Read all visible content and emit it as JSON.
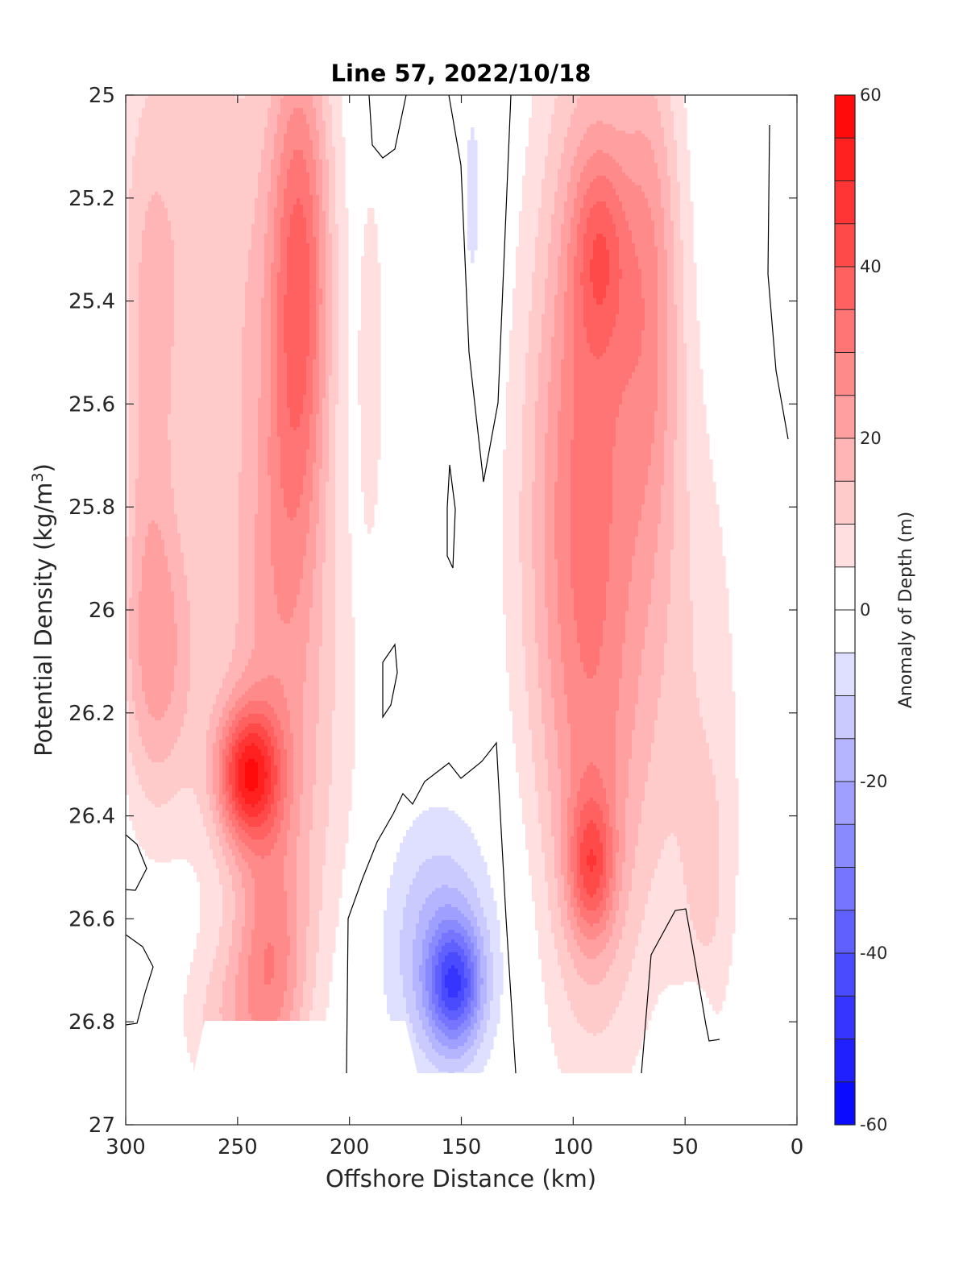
{
  "chart_data": {
    "type": "contour",
    "title": "Line 57, 2022/10/18",
    "xlabel": "Offshore Distance (km)",
    "ylabel": "Potential Density (kg/m3)",
    "ylabel_main": "Potential Density (kg/m",
    "ylabel_sup": "3",
    "ylabel_close": ")",
    "xlim": [
      300,
      0
    ],
    "x_reversed": true,
    "ylim": [
      25,
      27
    ],
    "y_reversed": true,
    "xticks": [
      300,
      250,
      200,
      150,
      100,
      50,
      0
    ],
    "xtick_labels": [
      "300",
      "250",
      "200",
      "150",
      "100",
      "50",
      "0"
    ],
    "yticks": [
      25,
      25.2,
      25.4,
      25.6,
      25.8,
      26,
      26.2,
      26.4,
      26.6,
      26.8,
      27
    ],
    "ytick_labels": [
      "25",
      "25.2",
      "25.4",
      "25.6",
      "25.8",
      "26",
      "26.2",
      "26.4",
      "26.6",
      "26.8",
      "27"
    ],
    "colorbar": {
      "label": "Anomaly of Depth (m)",
      "range": [
        -60,
        60
      ],
      "level_step": 5,
      "ticks": [
        60,
        40,
        20,
        0,
        -20,
        -40,
        -60
      ],
      "tick_labels": [
        "60",
        "40",
        "20",
        "0",
        "-20",
        "-40",
        "-60"
      ],
      "colormap": "blue-white-red"
    },
    "features": [
      {
        "name": "positive anomaly core",
        "x_km": 245,
        "sigma": 26.32,
        "value": 55
      },
      {
        "name": "offshore positive band",
        "x_km_range": [
          300,
          205
        ],
        "value_range": [
          5,
          35
        ]
      },
      {
        "name": "nearshore positive band",
        "x_km": 88,
        "sigma": 25.3,
        "value": 40
      },
      {
        "name": "nearshore positive core",
        "x_km": 92,
        "sigma": 26.5,
        "value": 40
      },
      {
        "name": "negative anomaly core",
        "x_km": 153,
        "sigma": 26.73,
        "value": -35
      },
      {
        "name": "weak negative surface",
        "x_km": 145,
        "sigma": 25.2,
        "value": -5
      },
      {
        "name": "weak negative deep nearshore",
        "x_km": 45,
        "sigma": 26.82,
        "value": -5
      }
    ],
    "zero_contours": true
  }
}
